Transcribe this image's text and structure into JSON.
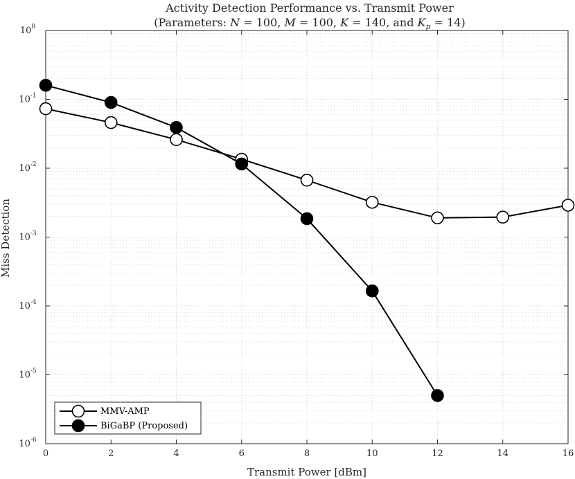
{
  "chart_data": {
    "type": "line",
    "title": "Activity Detection Performance vs. Transmit Power",
    "subtitle": "(Parameters: N = 100, M = 100, K = 140, and K_p = 14)",
    "xlabel": "Transmit Power [dBm]",
    "ylabel": "Miss Detection",
    "xlim": [
      0,
      16
    ],
    "ylim": [
      1e-06,
      1
    ],
    "yscale": "log",
    "grid": true,
    "legend_position": "bottom-left",
    "x_ticks": [
      "0",
      "2",
      "4",
      "6",
      "8",
      "10",
      "12",
      "14",
      "16"
    ],
    "y_ticks": [
      {
        "base": "10",
        "exp": "0"
      },
      {
        "base": "10",
        "exp": "-1"
      },
      {
        "base": "10",
        "exp": "-2"
      },
      {
        "base": "10",
        "exp": "-3"
      },
      {
        "base": "10",
        "exp": "-4"
      },
      {
        "base": "10",
        "exp": "-5"
      },
      {
        "base": "10",
        "exp": "-6"
      }
    ],
    "series": [
      {
        "name": "MMV-AMP",
        "marker": "open-circle",
        "x": [
          0,
          2,
          4,
          6,
          8,
          10,
          12,
          14,
          16
        ],
        "values": [
          0.073,
          0.046,
          0.026,
          0.0135,
          0.0067,
          0.0032,
          0.0019,
          0.00195,
          0.0029
        ]
      },
      {
        "name": "BiGaBP (Proposed)",
        "marker": "filled-circle",
        "x": [
          0,
          2,
          4,
          6,
          8,
          10,
          12
        ],
        "values": [
          0.16,
          0.09,
          0.039,
          0.0115,
          0.00185,
          0.000165,
          5e-06
        ]
      }
    ]
  }
}
